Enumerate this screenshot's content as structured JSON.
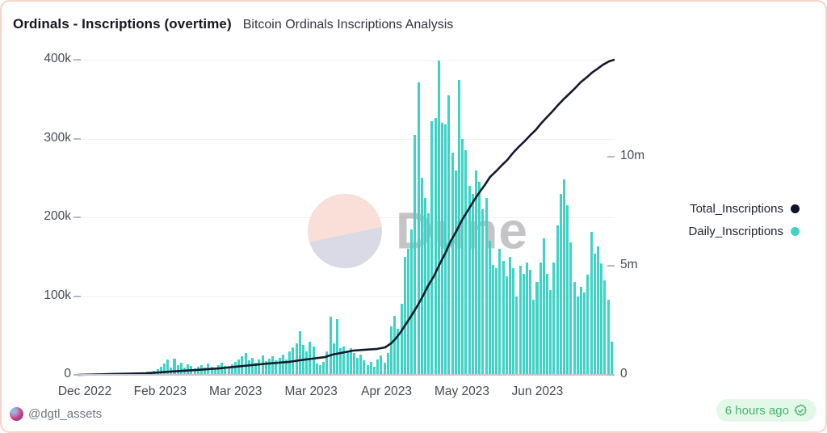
{
  "header": {
    "title": "Ordinals - Inscriptions (overtime)",
    "subtitle": "Bitcoin Ordinals Inscriptions Analysis"
  },
  "watermark": {
    "text": "Dune"
  },
  "legend": [
    {
      "label": "Total_Inscriptions",
      "color": "#0c1527"
    },
    {
      "label": "Daily_Inscriptions",
      "color": "#3fd3c6"
    }
  ],
  "footer": {
    "handle": "@dgtl_assets",
    "badge_text": "6 hours ago",
    "badge_bg": "#e4f8ea",
    "badge_color": "#47b46c"
  },
  "colors": {
    "bar": "#3fd3c6",
    "line": "#131a2c",
    "grid": "#f0f0f1",
    "axis_text": "#454a54",
    "card_border": "#f9d4ca"
  },
  "chart_data": {
    "type": "bar+line combo",
    "title": "Bitcoin Ordinals Inscriptions Analysis",
    "grid": "horizontal",
    "legend_position": "right",
    "x_tick_labels": [
      "Dec 2022",
      "Feb 2023",
      "Mar 2023",
      "Mar 2023",
      "Apr 2023",
      "May 2023",
      "Jun 2023"
    ],
    "left_axis": {
      "label_units": "daily inscriptions",
      "ticks": [
        "0",
        "100k",
        "200k",
        "300k",
        "400k"
      ],
      "min": 0,
      "max": 400000
    },
    "right_axis": {
      "label_units": "total inscriptions",
      "ticks": [
        "0",
        "5m",
        "10m"
      ],
      "min": 0,
      "max_visible": 14440000
    },
    "series": [
      {
        "name": "Daily_Inscriptions",
        "type": "bar",
        "axis": "left",
        "units": "thousands of inscriptions per day",
        "values_thousands": [
          0.4,
          0.5,
          0.4,
          0.6,
          0.5,
          0.7,
          0.6,
          0.8,
          0.7,
          0.9,
          0.8,
          1.0,
          0.9,
          1.1,
          1.0,
          1.2,
          1.4,
          1.8,
          2.5,
          3.5,
          4.5,
          3.8,
          5.5,
          7,
          10,
          14,
          19,
          9,
          21,
          12,
          15,
          9,
          13,
          11,
          8,
          10,
          12,
          9,
          14,
          10,
          8,
          12,
          15,
          11,
          9,
          13,
          16,
          20,
          24,
          28,
          18,
          22,
          15,
          19,
          25,
          17,
          21,
          24,
          18,
          22,
          26,
          20,
          30,
          35,
          40,
          55,
          38,
          30,
          42,
          36,
          14,
          12,
          16,
          30,
          74,
          40,
          71,
          34,
          36,
          30,
          34,
          28,
          22,
          26,
          18,
          12,
          16,
          10,
          20,
          25,
          15,
          28,
          62,
          75,
          58,
          90,
          150,
          160,
          185,
          305,
          371,
          250,
          225,
          205,
          322,
          326,
          399,
          320,
          318,
          355,
          282,
          260,
          374,
          300,
          285,
          240,
          230,
          260,
          245,
          210,
          225,
          170,
          140,
          135,
          160,
          145,
          125,
          150,
          135,
          100,
          138,
          128,
          143,
          133,
          95,
          118,
          143,
          173,
          128,
          108,
          143,
          190,
          230,
          248,
          215,
          168,
          118,
          100,
          112,
          105,
          127,
          182,
          154,
          163,
          142,
          120,
          95,
          42
        ]
      },
      {
        "name": "Total_Inscriptions",
        "type": "line",
        "axis": "right",
        "units": "millions of inscriptions, points are [x_fraction, value_millions]",
        "points": [
          [
            0,
            0
          ],
          [
            0.068,
            0.04
          ],
          [
            0.128,
            0.07
          ],
          [
            0.173,
            0.15
          ],
          [
            0.219,
            0.22
          ],
          [
            0.264,
            0.3
          ],
          [
            0.309,
            0.41
          ],
          [
            0.354,
            0.52
          ],
          [
            0.392,
            0.59
          ],
          [
            0.415,
            0.67
          ],
          [
            0.437,
            0.74
          ],
          [
            0.46,
            0.81
          ],
          [
            0.475,
            0.93
          ],
          [
            0.49,
            1.0
          ],
          [
            0.513,
            1.11
          ],
          [
            0.535,
            1.15
          ],
          [
            0.558,
            1.19
          ],
          [
            0.573,
            1.26
          ],
          [
            0.584,
            1.44
          ],
          [
            0.593,
            1.67
          ],
          [
            0.602,
            1.96
          ],
          [
            0.611,
            2.3
          ],
          [
            0.621,
            2.67
          ],
          [
            0.632,
            3.11
          ],
          [
            0.643,
            3.59
          ],
          [
            0.653,
            4.07
          ],
          [
            0.664,
            4.52
          ],
          [
            0.674,
            5.04
          ],
          [
            0.685,
            5.56
          ],
          [
            0.695,
            6.11
          ],
          [
            0.706,
            6.59
          ],
          [
            0.716,
            7.07
          ],
          [
            0.727,
            7.52
          ],
          [
            0.738,
            7.96
          ],
          [
            0.748,
            8.33
          ],
          [
            0.759,
            8.7
          ],
          [
            0.769,
            9.07
          ],
          [
            0.78,
            9.33
          ],
          [
            0.79,
            9.59
          ],
          [
            0.801,
            9.85
          ],
          [
            0.811,
            10.15
          ],
          [
            0.822,
            10.44
          ],
          [
            0.833,
            10.7
          ],
          [
            0.843,
            10.96
          ],
          [
            0.854,
            11.22
          ],
          [
            0.864,
            11.52
          ],
          [
            0.875,
            11.81
          ],
          [
            0.885,
            12.07
          ],
          [
            0.896,
            12.37
          ],
          [
            0.906,
            12.63
          ],
          [
            0.917,
            12.89
          ],
          [
            0.928,
            13.15
          ],
          [
            0.938,
            13.41
          ],
          [
            0.949,
            13.63
          ],
          [
            0.959,
            13.85
          ],
          [
            0.97,
            14.04
          ],
          [
            0.98,
            14.22
          ],
          [
            0.991,
            14.37
          ],
          [
            1,
            14.44
          ]
        ]
      }
    ]
  }
}
